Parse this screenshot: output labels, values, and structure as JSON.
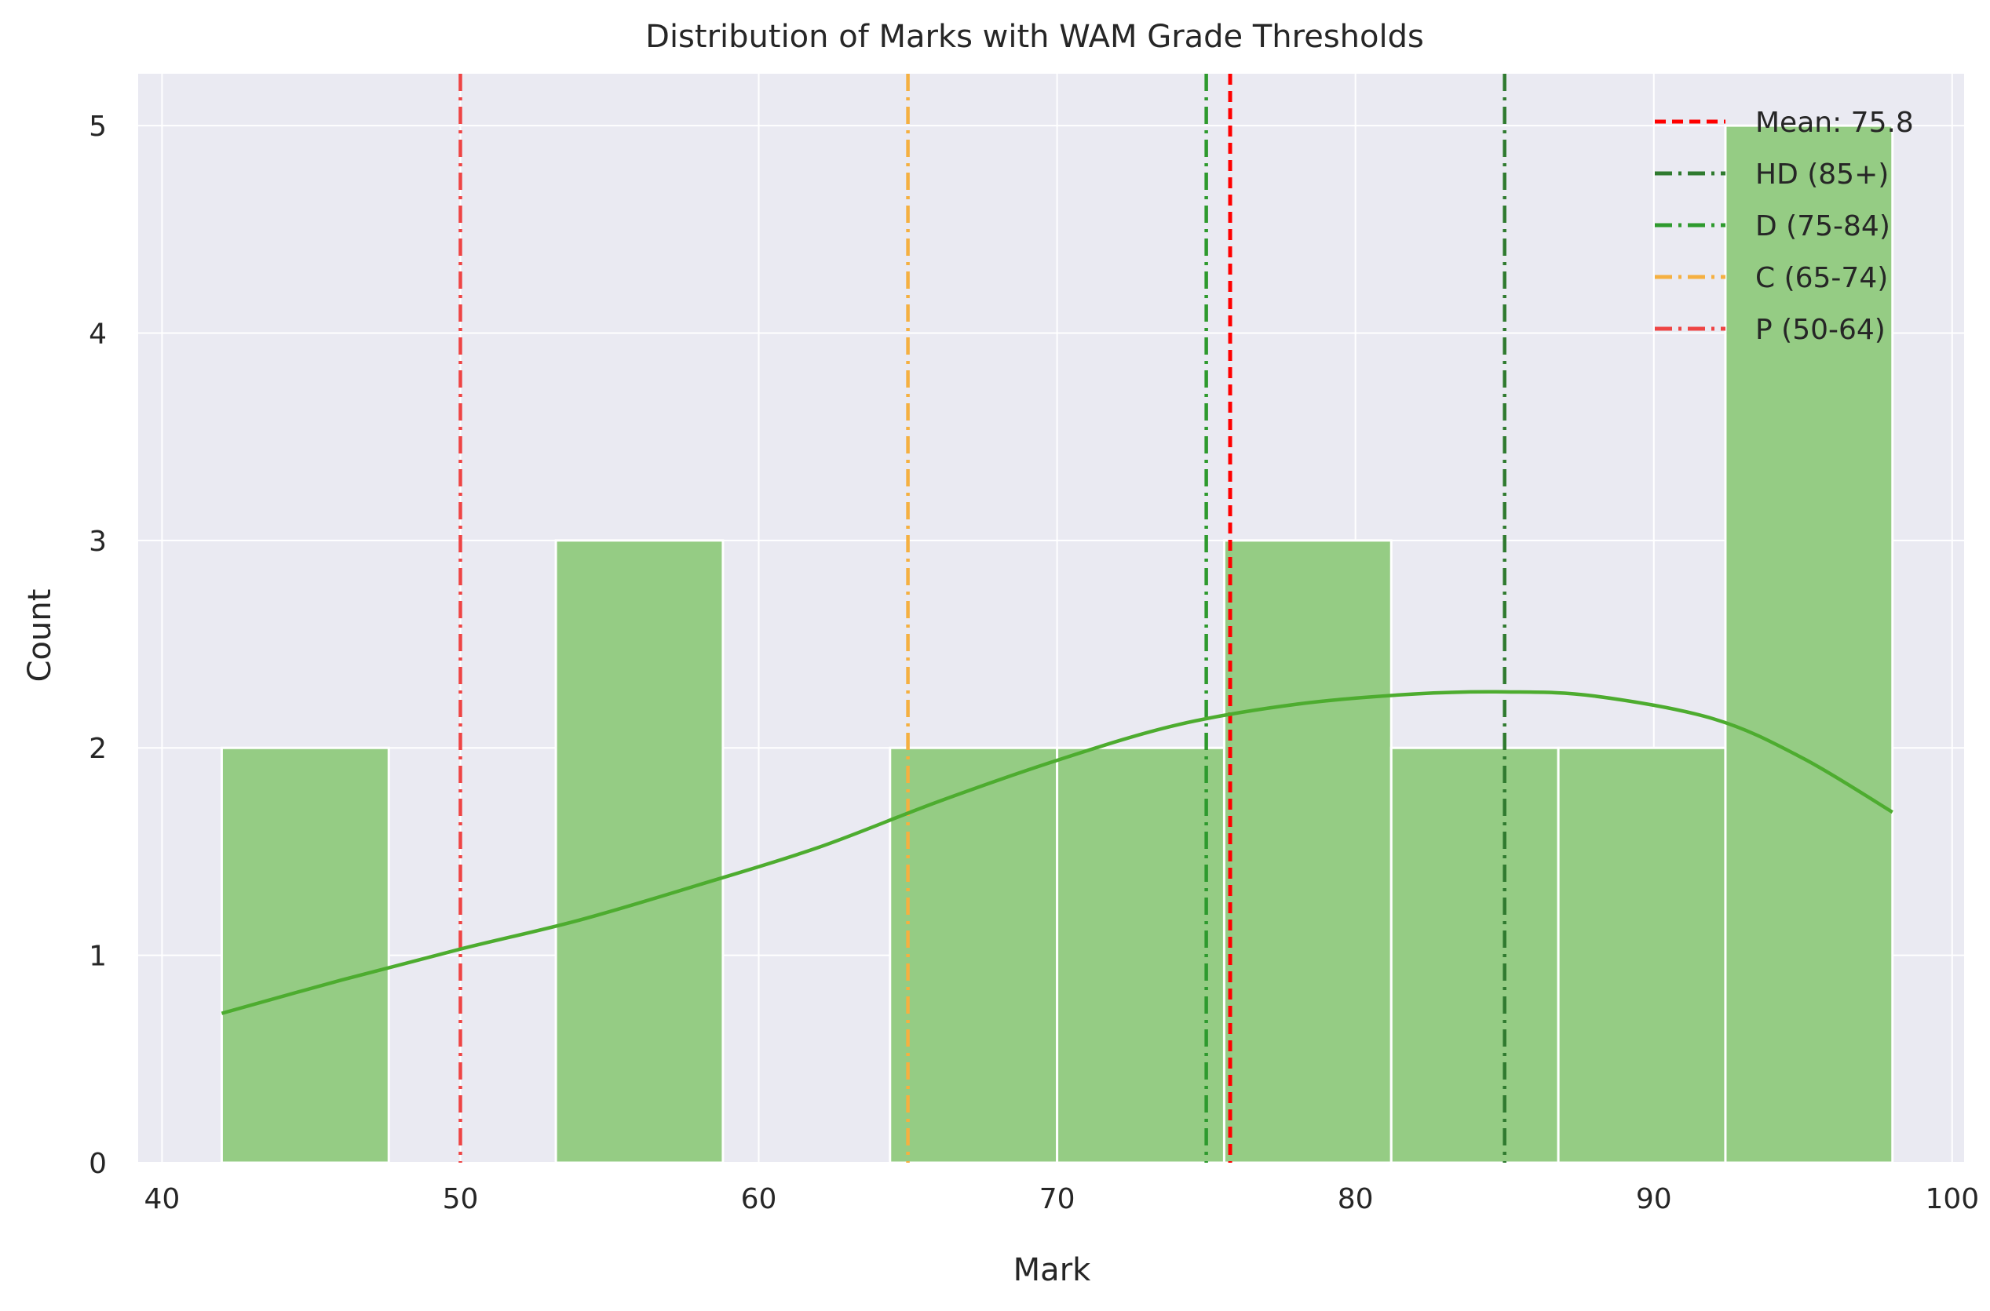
{
  "chart_data": {
    "type": "bar",
    "title": "Distribution of Marks with WAM Grade Thresholds",
    "xlabel": "Mark",
    "ylabel": "Count",
    "xlim": [
      39.2,
      100.4
    ],
    "ylim": [
      0,
      5.25
    ],
    "xticks": [
      40,
      50,
      60,
      70,
      80,
      90,
      100
    ],
    "yticks": [
      0,
      1,
      2,
      3,
      4,
      5
    ],
    "grid": true,
    "legend_position": "top-right",
    "bins": [
      {
        "start": 42.0,
        "end": 47.6,
        "count": 2
      },
      {
        "start": 47.6,
        "end": 53.2,
        "count": 0
      },
      {
        "start": 53.2,
        "end": 58.8,
        "count": 3
      },
      {
        "start": 58.8,
        "end": 64.4,
        "count": 0
      },
      {
        "start": 64.4,
        "end": 70.0,
        "count": 2
      },
      {
        "start": 70.0,
        "end": 75.6,
        "count": 2
      },
      {
        "start": 75.6,
        "end": 81.2,
        "count": 3
      },
      {
        "start": 81.2,
        "end": 86.8,
        "count": 2
      },
      {
        "start": 86.8,
        "end": 92.4,
        "count": 2
      },
      {
        "start": 92.4,
        "end": 98.0,
        "count": 5
      }
    ],
    "kde": {
      "x": [
        42,
        46,
        50,
        54,
        58,
        62,
        66,
        70,
        74,
        78,
        82,
        85,
        88,
        92,
        95,
        98
      ],
      "y": [
        0.72,
        0.88,
        1.03,
        1.17,
        1.34,
        1.52,
        1.74,
        1.94,
        2.11,
        2.21,
        2.26,
        2.27,
        2.25,
        2.14,
        1.95,
        1.69
      ]
    },
    "reference_lines": [
      {
        "label": "Mean: 75.8",
        "x": 75.8,
        "color": "#ff0000",
        "style": "dashed"
      },
      {
        "label": "HD (85+)",
        "x": 85,
        "color": "#2f7a2f",
        "style": "dashdot"
      },
      {
        "label": "D (75-84)",
        "x": 75,
        "color": "#2e9a2e",
        "style": "dashdot"
      },
      {
        "label": "C (65-74)",
        "x": 65,
        "color": "#f5b041",
        "style": "dashdot"
      },
      {
        "label": "P (50-64)",
        "x": 50,
        "color": "#ee4444",
        "style": "dashdot"
      }
    ],
    "colors": {
      "bar_fill": "#95cc84",
      "kde_line": "#4dac2f",
      "plot_background": "#eaeaf2",
      "grid": "#ffffff"
    }
  }
}
